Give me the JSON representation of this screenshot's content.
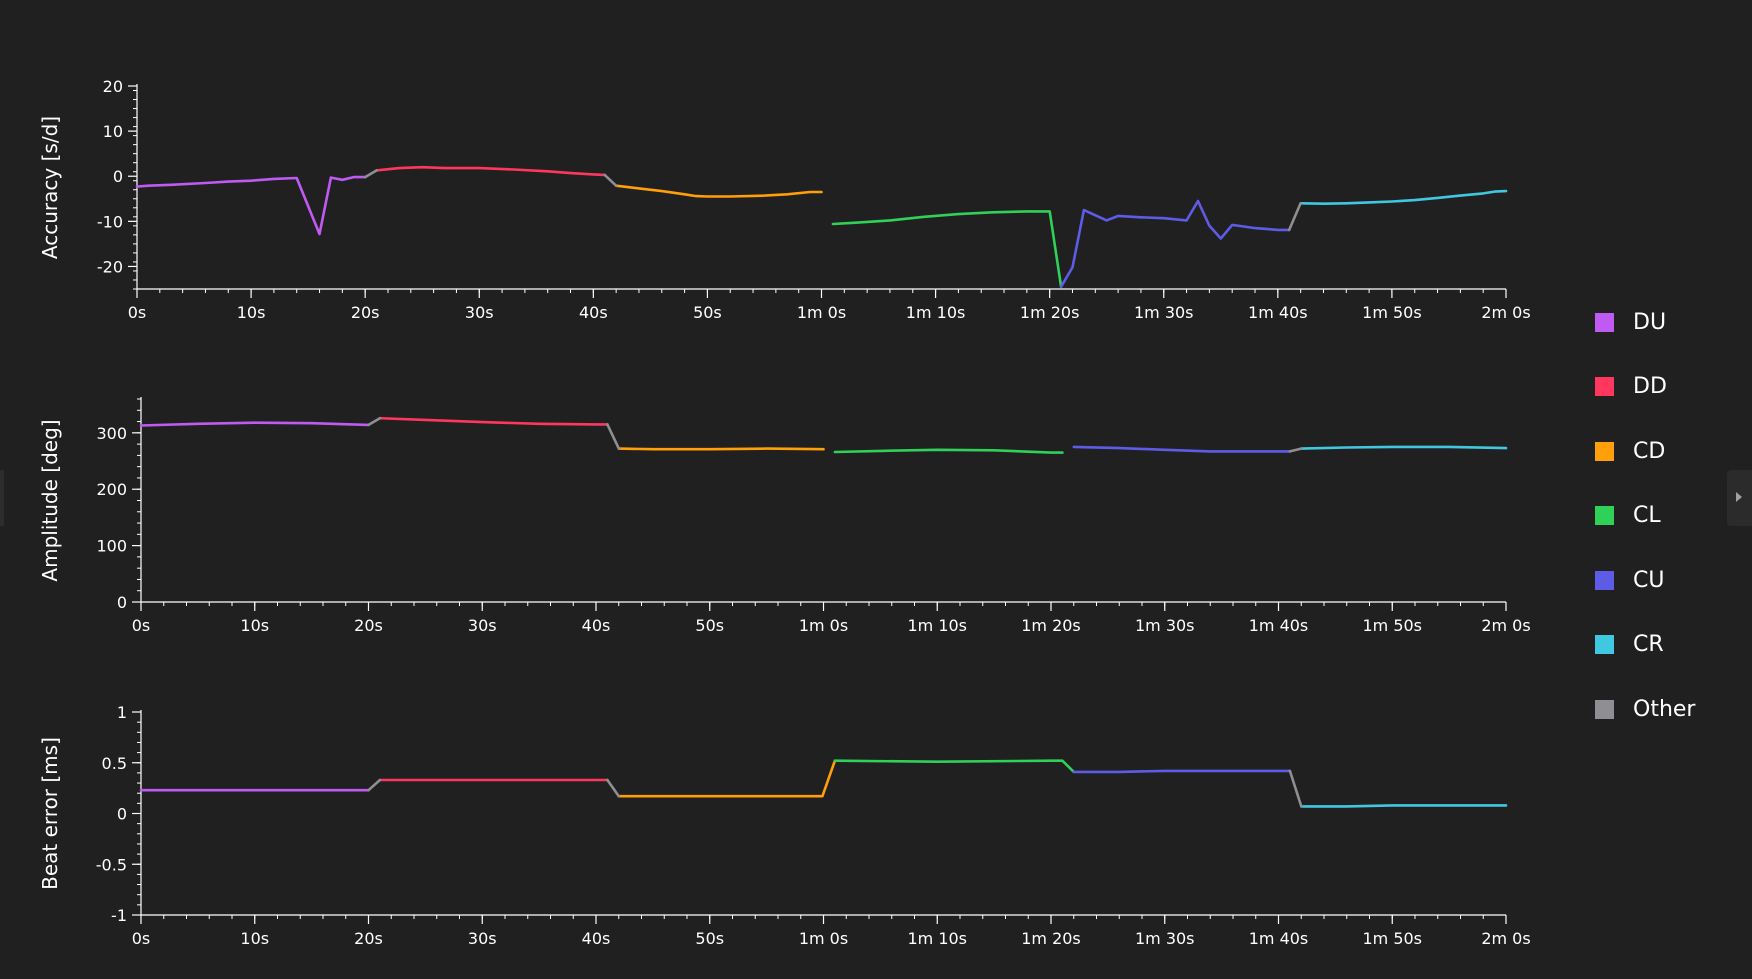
{
  "legend": {
    "items": [
      {
        "label": "DU",
        "color": "#bf5af2"
      },
      {
        "label": "DD",
        "color": "#ff375f"
      },
      {
        "label": "CD",
        "color": "#ff9f0a"
      },
      {
        "label": "CL",
        "color": "#30d158"
      },
      {
        "label": "CU",
        "color": "#5e5ce6"
      },
      {
        "label": "CR",
        "color": "#40c8e0"
      },
      {
        "label": "Other",
        "color": "#8e8e93"
      }
    ]
  },
  "panel_toggle": {
    "icon": "chevron-right-icon"
  },
  "chart_data": [
    {
      "type": "line",
      "ylabel": "Accuracy [s/d]",
      "xlabel": "",
      "xlim": [
        0,
        120
      ],
      "ylim": [
        -25,
        20
      ],
      "x_ticks": [
        {
          "v": 0,
          "label": "0s"
        },
        {
          "v": 10,
          "label": "10s"
        },
        {
          "v": 20,
          "label": "20s"
        },
        {
          "v": 30,
          "label": "30s"
        },
        {
          "v": 40,
          "label": "40s"
        },
        {
          "v": 50,
          "label": "50s"
        },
        {
          "v": 60,
          "label": "1m 0s"
        },
        {
          "v": 70,
          "label": "1m 10s"
        },
        {
          "v": 80,
          "label": "1m 20s"
        },
        {
          "v": 90,
          "label": "1m 30s"
        },
        {
          "v": 100,
          "label": "1m 40s"
        },
        {
          "v": 110,
          "label": "1m 50s"
        },
        {
          "v": 120,
          "label": "2m 0s"
        }
      ],
      "y_ticks": [
        {
          "v": 20,
          "label": "20"
        },
        {
          "v": 10,
          "label": "10"
        },
        {
          "v": 0,
          "label": "0"
        },
        {
          "v": -10,
          "label": "-10"
        },
        {
          "v": -20,
          "label": "-20"
        }
      ],
      "series": [
        {
          "name": "DU",
          "color": "#bf5af2",
          "points": [
            [
              0,
              -2.3
            ],
            [
              1,
              -2.1
            ],
            [
              3,
              -1.9
            ],
            [
              6,
              -1.5
            ],
            [
              8,
              -1.2
            ],
            [
              10,
              -1
            ],
            [
              12,
              -0.6
            ],
            [
              14,
              -0.4
            ],
            [
              16,
              -12.8
            ],
            [
              17,
              -0.3
            ],
            [
              18,
              -0.8
            ],
            [
              19,
              -0.2
            ],
            [
              20,
              -0.2
            ]
          ]
        },
        {
          "name": "DD",
          "color": "#ff375f",
          "points": [
            [
              21,
              1.3
            ],
            [
              23,
              1.8
            ],
            [
              25,
              2
            ],
            [
              27,
              1.8
            ],
            [
              30,
              1.8
            ],
            [
              33,
              1.5
            ],
            [
              36,
              1.1
            ],
            [
              38,
              0.7
            ],
            [
              40,
              0.4
            ],
            [
              41,
              0.3
            ]
          ]
        },
        {
          "name": "CD",
          "color": "#ff9f0a",
          "points": [
            [
              42,
              -2.1
            ],
            [
              44,
              -2.7
            ],
            [
              46,
              -3.3
            ],
            [
              48,
              -4
            ],
            [
              49,
              -4.4
            ],
            [
              50,
              -4.5
            ],
            [
              52,
              -4.5
            ],
            [
              55,
              -4.3
            ],
            [
              57,
              -4
            ],
            [
              59,
              -3.5
            ],
            [
              60,
              -3.5
            ]
          ]
        },
        {
          "name": "CL",
          "color": "#30d158",
          "points": [
            [
              61,
              -10.6
            ],
            [
              63,
              -10.3
            ],
            [
              66,
              -9.8
            ],
            [
              69,
              -9
            ],
            [
              72,
              -8.4
            ],
            [
              75,
              -8
            ],
            [
              78,
              -7.8
            ],
            [
              80,
              -7.8
            ],
            [
              81,
              -24.5
            ]
          ]
        },
        {
          "name": "CU",
          "color": "#5e5ce6",
          "points": [
            [
              81,
              -24.5
            ],
            [
              82,
              -20.2
            ],
            [
              83,
              -7.5
            ],
            [
              85,
              -9.8
            ],
            [
              86,
              -8.8
            ],
            [
              88,
              -9.1
            ],
            [
              90,
              -9.3
            ],
            [
              92,
              -9.8
            ],
            [
              93,
              -5.5
            ],
            [
              94,
              -11
            ],
            [
              95,
              -13.8
            ],
            [
              96,
              -10.8
            ],
            [
              98,
              -11.5
            ],
            [
              100,
              -11.9
            ],
            [
              101,
              -11.9
            ]
          ]
        },
        {
          "name": "CR",
          "color": "#40c8e0",
          "points": [
            [
              102,
              -6
            ],
            [
              104,
              -6.1
            ],
            [
              106,
              -6
            ],
            [
              108,
              -5.8
            ],
            [
              110,
              -5.6
            ],
            [
              112,
              -5.3
            ],
            [
              114,
              -4.8
            ],
            [
              116,
              -4.3
            ],
            [
              118,
              -3.8
            ],
            [
              119,
              -3.4
            ],
            [
              120,
              -3.3
            ]
          ]
        },
        {
          "name": "Other",
          "color": "#8e8e93",
          "points": [
            [
              20,
              -0.2
            ],
            [
              21,
              1.3
            ]
          ]
        },
        {
          "name": "Other",
          "color": "#8e8e93",
          "points": [
            [
              41,
              0.3
            ],
            [
              42,
              -2.1
            ]
          ]
        },
        {
          "name": "Other",
          "color": "#8e8e93",
          "points": [
            [
              101,
              -11.9
            ],
            [
              102,
              -6
            ]
          ]
        }
      ]
    },
    {
      "type": "line",
      "ylabel": "Amplitude [deg]",
      "xlabel": "",
      "xlim": [
        0,
        120
      ],
      "ylim": [
        0,
        360
      ],
      "x_ticks": [
        {
          "v": 0,
          "label": "0s"
        },
        {
          "v": 10,
          "label": "10s"
        },
        {
          "v": 20,
          "label": "20s"
        },
        {
          "v": 30,
          "label": "30s"
        },
        {
          "v": 40,
          "label": "40s"
        },
        {
          "v": 50,
          "label": "50s"
        },
        {
          "v": 60,
          "label": "1m 0s"
        },
        {
          "v": 70,
          "label": "1m 10s"
        },
        {
          "v": 80,
          "label": "1m 20s"
        },
        {
          "v": 90,
          "label": "1m 30s"
        },
        {
          "v": 100,
          "label": "1m 40s"
        },
        {
          "v": 110,
          "label": "1m 50s"
        },
        {
          "v": 120,
          "label": "2m 0s"
        }
      ],
      "y_ticks": [
        {
          "v": 300,
          "label": "300"
        },
        {
          "v": 200,
          "label": "200"
        },
        {
          "v": 100,
          "label": "100"
        },
        {
          "v": 0,
          "label": "0"
        }
      ],
      "series": [
        {
          "name": "DU",
          "color": "#bf5af2",
          "points": [
            [
              0,
              313
            ],
            [
              5,
              316
            ],
            [
              10,
              318
            ],
            [
              15,
              317
            ],
            [
              20,
              314
            ]
          ]
        },
        {
          "name": "DD",
          "color": "#ff375f",
          "points": [
            [
              21,
              326
            ],
            [
              25,
              323
            ],
            [
              30,
              319
            ],
            [
              35,
              316
            ],
            [
              40,
              315
            ],
            [
              41,
              315
            ]
          ]
        },
        {
          "name": "CD",
          "color": "#ff9f0a",
          "points": [
            [
              42,
              272
            ],
            [
              45,
              271
            ],
            [
              50,
              271
            ],
            [
              55,
              272
            ],
            [
              60,
              271
            ]
          ]
        },
        {
          "name": "CL",
          "color": "#30d158",
          "points": [
            [
              61,
              266
            ],
            [
              65,
              268
            ],
            [
              70,
              270
            ],
            [
              75,
              269
            ],
            [
              80,
              265
            ],
            [
              81,
              265
            ]
          ]
        },
        {
          "name": "CU",
          "color": "#5e5ce6",
          "points": [
            [
              82,
              275
            ],
            [
              86,
              273
            ],
            [
              90,
              270
            ],
            [
              94,
              267
            ],
            [
              98,
              267
            ],
            [
              101,
              267
            ]
          ]
        },
        {
          "name": "CR",
          "color": "#40c8e0",
          "points": [
            [
              102,
              272
            ],
            [
              106,
              274
            ],
            [
              110,
              275
            ],
            [
              115,
              275
            ],
            [
              120,
              273
            ]
          ]
        },
        {
          "name": "Other",
          "color": "#8e8e93",
          "points": [
            [
              20,
              314
            ],
            [
              21,
              326
            ]
          ]
        },
        {
          "name": "Other",
          "color": "#8e8e93",
          "points": [
            [
              41,
              315
            ],
            [
              42,
              272
            ]
          ]
        },
        {
          "name": "Other",
          "color": "#8e8e93",
          "points": [
            [
              101,
              267
            ],
            [
              102,
              272
            ]
          ]
        }
      ]
    },
    {
      "type": "line",
      "ylabel": "Beat error [ms]",
      "xlabel": "",
      "xlim": [
        0,
        120
      ],
      "ylim": [
        -1,
        1
      ],
      "x_ticks": [
        {
          "v": 0,
          "label": "0s"
        },
        {
          "v": 10,
          "label": "10s"
        },
        {
          "v": 20,
          "label": "20s"
        },
        {
          "v": 30,
          "label": "30s"
        },
        {
          "v": 40,
          "label": "40s"
        },
        {
          "v": 50,
          "label": "50s"
        },
        {
          "v": 60,
          "label": "1m 0s"
        },
        {
          "v": 70,
          "label": "1m 10s"
        },
        {
          "v": 80,
          "label": "1m 20s"
        },
        {
          "v": 90,
          "label": "1m 30s"
        },
        {
          "v": 100,
          "label": "1m 40s"
        },
        {
          "v": 110,
          "label": "1m 50s"
        },
        {
          "v": 120,
          "label": "2m 0s"
        }
      ],
      "y_ticks": [
        {
          "v": 1,
          "label": "1"
        },
        {
          "v": 0.5,
          "label": "0.5"
        },
        {
          "v": 0,
          "label": "0"
        },
        {
          "v": -0.5,
          "label": "-0.5"
        },
        {
          "v": -1,
          "label": "-1"
        }
      ],
      "series": [
        {
          "name": "DU",
          "color": "#bf5af2",
          "points": [
            [
              0,
              0.23
            ],
            [
              10,
              0.23
            ],
            [
              20,
              0.23
            ]
          ]
        },
        {
          "name": "DD",
          "color": "#ff375f",
          "points": [
            [
              21,
              0.33
            ],
            [
              30,
              0.33
            ],
            [
              41,
              0.33
            ]
          ]
        },
        {
          "name": "CD",
          "color": "#ff9f0a",
          "points": [
            [
              42,
              0.17
            ],
            [
              50,
              0.17
            ],
            [
              59.9,
              0.17
            ],
            [
              61,
              0.52
            ]
          ]
        },
        {
          "name": "CL",
          "color": "#30d158",
          "points": [
            [
              61,
              0.52
            ],
            [
              70,
              0.51
            ],
            [
              80,
              0.52
            ],
            [
              81,
              0.52
            ],
            [
              82,
              0.41
            ]
          ]
        },
        {
          "name": "CU",
          "color": "#5e5ce6",
          "points": [
            [
              82,
              0.41
            ],
            [
              86,
              0.41
            ],
            [
              90,
              0.42
            ],
            [
              95,
              0.42
            ],
            [
              101,
              0.42
            ]
          ]
        },
        {
          "name": "CR",
          "color": "#40c8e0",
          "points": [
            [
              102,
              0.07
            ],
            [
              106,
              0.07
            ],
            [
              110,
              0.08
            ],
            [
              115,
              0.08
            ],
            [
              120,
              0.08
            ]
          ]
        },
        {
          "name": "Other",
          "color": "#8e8e93",
          "points": [
            [
              20,
              0.23
            ],
            [
              21,
              0.33
            ]
          ]
        },
        {
          "name": "Other",
          "color": "#8e8e93",
          "points": [
            [
              41,
              0.33
            ],
            [
              42,
              0.17
            ]
          ]
        },
        {
          "name": "Other",
          "color": "#8e8e93",
          "points": [
            [
              101,
              0.42
            ],
            [
              102,
              0.07
            ]
          ]
        }
      ]
    }
  ]
}
